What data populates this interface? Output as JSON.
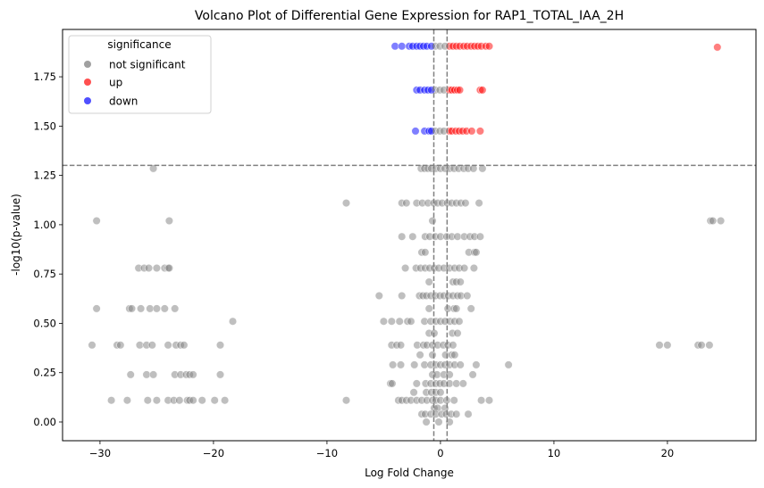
{
  "chart_data": {
    "type": "scatter",
    "title": "Volcano Plot of Differential Gene Expression for RAP1_TOTAL_IAA_2H",
    "xlabel": "Log Fold Change",
    "ylabel": "-log10(p-value)",
    "xlim": [
      -33.3,
      27.8
    ],
    "ylim": [
      -0.095,
      1.99
    ],
    "xticks": [
      -30,
      -20,
      -10,
      0,
      10,
      20
    ],
    "xtick_labels": [
      "−30",
      "−20",
      "−10",
      "0",
      "10",
      "20"
    ],
    "yticks": [
      0.0,
      0.25,
      0.5,
      0.75,
      1.0,
      1.25,
      1.5,
      1.75
    ],
    "ytick_labels": [
      "0.00",
      "0.25",
      "0.50",
      "0.75",
      "1.00",
      "1.25",
      "1.50",
      "1.75"
    ],
    "grid": false,
    "thresholds": {
      "pvalue_line": 1.301,
      "fold_change_lines": [
        -0.585,
        0.585
      ]
    },
    "legend": {
      "title": "significance",
      "placement": "top-left",
      "entries": [
        {
          "label": "not significant",
          "color": "#a0a0a0"
        },
        {
          "label": "up",
          "color": "#ff5050"
        },
        {
          "label": "down",
          "color": "#5050ff"
        }
      ]
    },
    "colors": {
      "not significant": "#808080",
      "up": "#ff0000",
      "down": "#0000ff",
      "threshold_line": "#808080"
    },
    "series": [
      {
        "name": "down",
        "points": [
          [
            -4.0,
            1.905
          ],
          [
            -3.4,
            1.905
          ],
          [
            -2.75,
            1.905
          ],
          [
            -2.45,
            1.905
          ],
          [
            -2.1,
            1.905
          ],
          [
            -1.8,
            1.905
          ],
          [
            -1.5,
            1.905
          ],
          [
            -1.2,
            1.905
          ],
          [
            -0.8,
            1.905
          ],
          [
            -2.1,
            1.683
          ],
          [
            -1.8,
            1.683
          ],
          [
            -1.4,
            1.683
          ],
          [
            -1.1,
            1.683
          ],
          [
            -0.8,
            1.683
          ],
          [
            -2.2,
            1.475
          ],
          [
            -1.4,
            1.475
          ],
          [
            -1.0,
            1.475
          ],
          [
            -0.8,
            1.475
          ]
        ]
      },
      {
        "name": "up",
        "points": [
          [
            0.8,
            1.905
          ],
          [
            1.1,
            1.905
          ],
          [
            1.4,
            1.905
          ],
          [
            1.7,
            1.905
          ],
          [
            2.05,
            1.905
          ],
          [
            2.35,
            1.905
          ],
          [
            2.7,
            1.905
          ],
          [
            3.0,
            1.905
          ],
          [
            3.3,
            1.905
          ],
          [
            3.6,
            1.905
          ],
          [
            4.0,
            1.905
          ],
          [
            4.3,
            1.905
          ],
          [
            24.4,
            1.9
          ],
          [
            0.8,
            1.683
          ],
          [
            1.0,
            1.683
          ],
          [
            1.25,
            1.683
          ],
          [
            1.5,
            1.683
          ],
          [
            1.7,
            1.683
          ],
          [
            3.5,
            1.683
          ],
          [
            3.7,
            1.683
          ],
          [
            0.8,
            1.475
          ],
          [
            1.0,
            1.475
          ],
          [
            1.35,
            1.475
          ],
          [
            1.65,
            1.475
          ],
          [
            1.95,
            1.475
          ],
          [
            2.3,
            1.475
          ],
          [
            2.75,
            1.475
          ],
          [
            3.5,
            1.475
          ]
        ]
      },
      {
        "name": "not significant",
        "points": [
          [
            -0.45,
            1.905
          ],
          [
            -0.05,
            1.905
          ],
          [
            0.4,
            1.905
          ],
          [
            -0.45,
            1.683
          ],
          [
            -0.05,
            1.683
          ],
          [
            0.3,
            1.683
          ],
          [
            -0.45,
            1.475
          ],
          [
            -0.05,
            1.475
          ],
          [
            0.3,
            1.475
          ],
          [
            -25.3,
            1.285
          ],
          [
            -1.7,
            1.285
          ],
          [
            -1.4,
            1.285
          ],
          [
            -1.1,
            1.285
          ],
          [
            -0.8,
            1.285
          ],
          [
            -0.4,
            1.285
          ],
          [
            0.0,
            1.285
          ],
          [
            0.4,
            1.285
          ],
          [
            0.8,
            1.285
          ],
          [
            1.2,
            1.285
          ],
          [
            1.6,
            1.285
          ],
          [
            2.05,
            1.285
          ],
          [
            2.45,
            1.285
          ],
          [
            2.9,
            1.285
          ],
          [
            3.7,
            1.285
          ],
          [
            -8.3,
            1.11
          ],
          [
            -3.4,
            1.11
          ],
          [
            -3.0,
            1.11
          ],
          [
            -2.1,
            1.11
          ],
          [
            -1.6,
            1.11
          ],
          [
            -1.1,
            1.11
          ],
          [
            -0.6,
            1.11
          ],
          [
            -0.25,
            1.11
          ],
          [
            0.15,
            1.11
          ],
          [
            0.6,
            1.11
          ],
          [
            1.0,
            1.11
          ],
          [
            1.4,
            1.11
          ],
          [
            1.8,
            1.11
          ],
          [
            2.2,
            1.11
          ],
          [
            3.4,
            1.11
          ],
          [
            -30.3,
            1.02
          ],
          [
            -23.9,
            1.02
          ],
          [
            -0.7,
            1.02
          ],
          [
            23.8,
            1.02
          ],
          [
            24.0,
            1.02
          ],
          [
            24.7,
            1.02
          ],
          [
            -3.4,
            0.94
          ],
          [
            -2.45,
            0.94
          ],
          [
            -1.35,
            0.94
          ],
          [
            -0.95,
            0.94
          ],
          [
            -0.45,
            0.94
          ],
          [
            0.0,
            0.94
          ],
          [
            0.55,
            0.94
          ],
          [
            1.0,
            0.94
          ],
          [
            1.5,
            0.94
          ],
          [
            2.1,
            0.94
          ],
          [
            2.6,
            0.94
          ],
          [
            3.0,
            0.94
          ],
          [
            3.5,
            0.94
          ],
          [
            -1.65,
            0.86
          ],
          [
            -1.35,
            0.86
          ],
          [
            2.5,
            0.86
          ],
          [
            3.0,
            0.86
          ],
          [
            3.15,
            0.86
          ],
          [
            -26.6,
            0.78
          ],
          [
            -26.1,
            0.78
          ],
          [
            -25.7,
            0.78
          ],
          [
            -25.0,
            0.78
          ],
          [
            -24.3,
            0.78
          ],
          [
            -24.0,
            0.78
          ],
          [
            -23.9,
            0.78
          ],
          [
            -3.1,
            0.78
          ],
          [
            -2.15,
            0.78
          ],
          [
            -1.75,
            0.78
          ],
          [
            -1.35,
            0.78
          ],
          [
            -0.95,
            0.78
          ],
          [
            -0.55,
            0.78
          ],
          [
            -0.15,
            0.78
          ],
          [
            0.3,
            0.78
          ],
          [
            0.8,
            0.78
          ],
          [
            1.25,
            0.78
          ],
          [
            1.65,
            0.78
          ],
          [
            2.1,
            0.78
          ],
          [
            2.95,
            0.78
          ],
          [
            -1.0,
            0.71
          ],
          [
            1.1,
            0.71
          ],
          [
            1.4,
            0.71
          ],
          [
            1.75,
            0.71
          ],
          [
            -30.3,
            0.575
          ],
          [
            -27.4,
            0.575
          ],
          [
            -27.2,
            0.575
          ],
          [
            -26.4,
            0.575
          ],
          [
            -25.6,
            0.575
          ],
          [
            -25.0,
            0.575
          ],
          [
            -24.3,
            0.575
          ],
          [
            -23.4,
            0.575
          ],
          [
            -5.4,
            0.64
          ],
          [
            -3.4,
            0.64
          ],
          [
            -1.85,
            0.64
          ],
          [
            -1.55,
            0.64
          ],
          [
            -1.25,
            0.64
          ],
          [
            -0.85,
            0.64
          ],
          [
            -0.45,
            0.64
          ],
          [
            -0.05,
            0.64
          ],
          [
            0.3,
            0.64
          ],
          [
            0.7,
            0.64
          ],
          [
            1.1,
            0.64
          ],
          [
            1.5,
            0.64
          ],
          [
            1.8,
            0.64
          ],
          [
            2.35,
            0.64
          ],
          [
            -1.0,
            0.575
          ],
          [
            0.65,
            0.575
          ],
          [
            1.2,
            0.575
          ],
          [
            1.4,
            0.575
          ],
          [
            2.7,
            0.575
          ],
          [
            -18.3,
            0.51
          ],
          [
            -5.0,
            0.51
          ],
          [
            -4.3,
            0.51
          ],
          [
            -3.6,
            0.51
          ],
          [
            -2.9,
            0.51
          ],
          [
            -2.6,
            0.51
          ],
          [
            -1.4,
            0.51
          ],
          [
            -0.85,
            0.51
          ],
          [
            -0.4,
            0.51
          ],
          [
            0.0,
            0.51
          ],
          [
            0.4,
            0.51
          ],
          [
            0.85,
            0.51
          ],
          [
            1.25,
            0.51
          ],
          [
            1.65,
            0.51
          ],
          [
            -1.0,
            0.45
          ],
          [
            -0.55,
            0.45
          ],
          [
            1.05,
            0.45
          ],
          [
            1.5,
            0.45
          ],
          [
            -30.7,
            0.39
          ],
          [
            -28.5,
            0.39
          ],
          [
            -28.2,
            0.39
          ],
          [
            -26.5,
            0.39
          ],
          [
            -25.9,
            0.39
          ],
          [
            -25.4,
            0.39
          ],
          [
            -24.0,
            0.39
          ],
          [
            -23.3,
            0.39
          ],
          [
            -22.9,
            0.39
          ],
          [
            -22.6,
            0.39
          ],
          [
            -19.4,
            0.39
          ],
          [
            -4.3,
            0.39
          ],
          [
            -3.85,
            0.39
          ],
          [
            -3.5,
            0.39
          ],
          [
            -2.05,
            0.39
          ],
          [
            -1.5,
            0.39
          ],
          [
            -1.2,
            0.39
          ],
          [
            -0.7,
            0.39
          ],
          [
            -0.25,
            0.39
          ],
          [
            0.25,
            0.39
          ],
          [
            0.65,
            0.39
          ],
          [
            1.1,
            0.39
          ],
          [
            19.3,
            0.39
          ],
          [
            20.0,
            0.39
          ],
          [
            22.7,
            0.39
          ],
          [
            23.0,
            0.39
          ],
          [
            23.7,
            0.39
          ],
          [
            -1.8,
            0.34
          ],
          [
            -0.7,
            0.34
          ],
          [
            0.45,
            0.34
          ],
          [
            1.0,
            0.34
          ],
          [
            1.25,
            0.34
          ],
          [
            -4.2,
            0.29
          ],
          [
            -3.5,
            0.29
          ],
          [
            -2.3,
            0.29
          ],
          [
            -1.4,
            0.29
          ],
          [
            -0.85,
            0.29
          ],
          [
            -0.4,
            0.29
          ],
          [
            0.0,
            0.29
          ],
          [
            0.4,
            0.29
          ],
          [
            0.8,
            0.29
          ],
          [
            1.25,
            0.29
          ],
          [
            1.75,
            0.29
          ],
          [
            3.15,
            0.29
          ],
          [
            6.0,
            0.29
          ],
          [
            -27.3,
            0.24
          ],
          [
            -25.9,
            0.24
          ],
          [
            -25.3,
            0.24
          ],
          [
            -23.4,
            0.24
          ],
          [
            -22.9,
            0.24
          ],
          [
            -22.4,
            0.24
          ],
          [
            -22.1,
            0.24
          ],
          [
            -21.8,
            0.24
          ],
          [
            -19.4,
            0.24
          ],
          [
            -0.7,
            0.24
          ],
          [
            -0.3,
            0.24
          ],
          [
            0.3,
            0.24
          ],
          [
            0.8,
            0.24
          ],
          [
            2.85,
            0.24
          ],
          [
            -4.4,
            0.195
          ],
          [
            -4.25,
            0.195
          ],
          [
            -2.1,
            0.195
          ],
          [
            -1.3,
            0.195
          ],
          [
            -0.85,
            0.195
          ],
          [
            -0.4,
            0.195
          ],
          [
            -0.05,
            0.195
          ],
          [
            0.3,
            0.195
          ],
          [
            0.8,
            0.195
          ],
          [
            1.4,
            0.195
          ],
          [
            2.0,
            0.195
          ],
          [
            -2.35,
            0.15
          ],
          [
            -1.25,
            0.15
          ],
          [
            -0.8,
            0.15
          ],
          [
            -0.4,
            0.15
          ],
          [
            0.0,
            0.15
          ],
          [
            -29.0,
            0.11
          ],
          [
            -27.6,
            0.11
          ],
          [
            -25.8,
            0.11
          ],
          [
            -25.0,
            0.11
          ],
          [
            -24.0,
            0.11
          ],
          [
            -23.5,
            0.11
          ],
          [
            -23.0,
            0.11
          ],
          [
            -22.3,
            0.11
          ],
          [
            -22.1,
            0.11
          ],
          [
            -21.8,
            0.11
          ],
          [
            -21.0,
            0.11
          ],
          [
            -19.9,
            0.11
          ],
          [
            -19.0,
            0.11
          ],
          [
            -8.3,
            0.11
          ],
          [
            -3.7,
            0.11
          ],
          [
            -3.4,
            0.11
          ],
          [
            -3.0,
            0.11
          ],
          [
            -2.6,
            0.11
          ],
          [
            -2.1,
            0.11
          ],
          [
            -1.65,
            0.11
          ],
          [
            -1.2,
            0.11
          ],
          [
            -0.7,
            0.11
          ],
          [
            -0.4,
            0.11
          ],
          [
            0.0,
            0.11
          ],
          [
            0.55,
            0.11
          ],
          [
            1.2,
            0.11
          ],
          [
            3.6,
            0.11
          ],
          [
            4.3,
            0.11
          ],
          [
            -0.55,
            0.07
          ],
          [
            -0.25,
            0.07
          ],
          [
            0.4,
            0.07
          ],
          [
            -1.65,
            0.04
          ],
          [
            -1.35,
            0.04
          ],
          [
            -0.85,
            0.04
          ],
          [
            -0.4,
            0.04
          ],
          [
            0.1,
            0.04
          ],
          [
            0.5,
            0.04
          ],
          [
            0.95,
            0.04
          ],
          [
            1.4,
            0.04
          ],
          [
            2.45,
            0.04
          ],
          [
            -1.25,
            0.0
          ],
          [
            -0.15,
            0.0
          ],
          [
            0.8,
            0.0
          ]
        ]
      }
    ]
  }
}
